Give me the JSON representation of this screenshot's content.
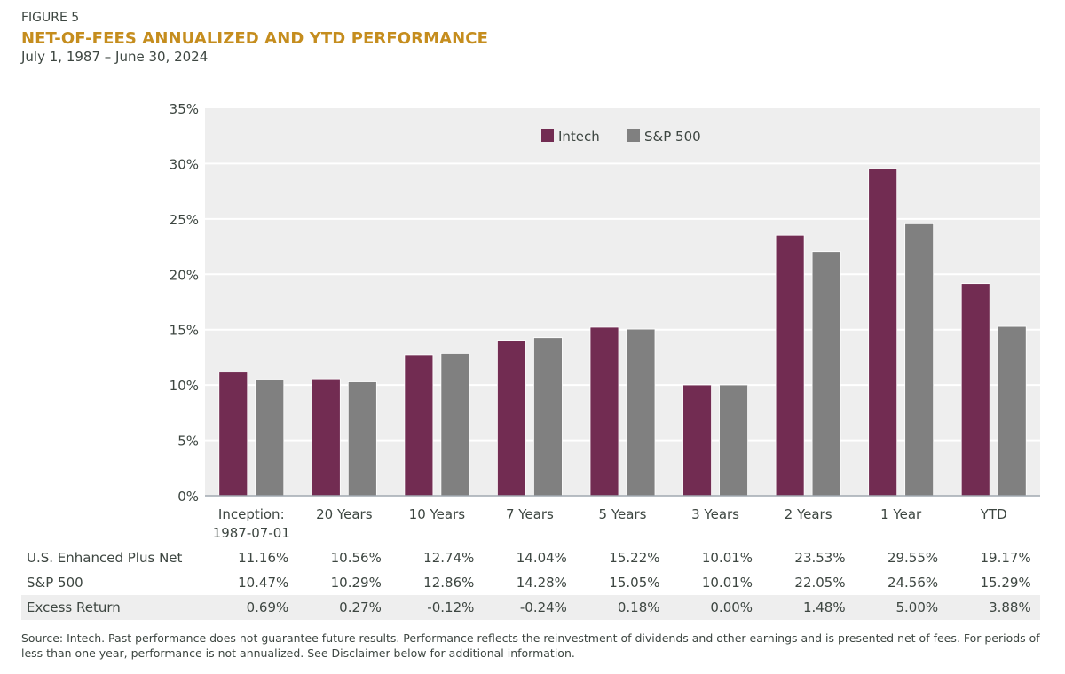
{
  "header": {
    "figure_label": "FIGURE 5",
    "title": "NET-OF-FEES ANNUALIZED AND YTD PERFORMANCE",
    "subtitle": "July 1, 1987 – June 30, 2024"
  },
  "colors": {
    "title": "#c58d1e",
    "intech": "#722c52",
    "sp500": "#808080",
    "plot_bg": "#eeeeee",
    "gridline": "#ffffff",
    "axis": "#a0a8b0"
  },
  "chart_data": {
    "type": "bar",
    "title": "NET-OF-FEES ANNUALIZED AND YTD PERFORMANCE",
    "subtitle": "July 1, 1987 – June 30, 2024",
    "xlabel": "",
    "ylabel": "",
    "categories": [
      [
        "Inception:",
        "1987-07-01"
      ],
      [
        "20 Years"
      ],
      [
        "10 Years"
      ],
      [
        "7 Years"
      ],
      [
        "5 Years"
      ],
      [
        "3 Years"
      ],
      [
        "2 Years"
      ],
      [
        "1 Year"
      ],
      [
        "YTD"
      ]
    ],
    "series": [
      {
        "name": "Intech",
        "color": "#722c52",
        "values": [
          11.16,
          10.56,
          12.74,
          14.04,
          15.22,
          10.01,
          23.53,
          29.55,
          19.17
        ]
      },
      {
        "name": "S&P 500",
        "color": "#808080",
        "values": [
          10.47,
          10.29,
          12.86,
          14.28,
          15.05,
          10.01,
          22.05,
          24.56,
          15.29
        ]
      }
    ],
    "ylim": [
      0,
      35
    ],
    "yticks": [
      0,
      5,
      10,
      15,
      20,
      25,
      30,
      35
    ],
    "ytick_labels": [
      "0%",
      "5%",
      "10%",
      "15%",
      "20%",
      "25%",
      "30%",
      "35%"
    ],
    "grid": true,
    "legend_position": "top-center"
  },
  "table": {
    "rows": [
      {
        "label": "U.S. Enhanced Plus Net",
        "values": [
          "11.16%",
          "10.56%",
          "12.74%",
          "14.04%",
          "15.22%",
          "10.01%",
          "23.53%",
          "29.55%",
          "19.17%"
        ],
        "shaded": false
      },
      {
        "label": "S&P 500",
        "values": [
          "10.47%",
          "10.29%",
          "12.86%",
          "14.28%",
          "15.05%",
          "10.01%",
          "22.05%",
          "24.56%",
          "15.29%"
        ],
        "shaded": false
      },
      {
        "label": "Excess Return",
        "values": [
          "0.69%",
          "0.27%",
          "-0.12%",
          "-0.24%",
          "0.18%",
          "0.00%",
          "1.48%",
          "5.00%",
          "3.88%"
        ],
        "shaded": true
      }
    ]
  },
  "footnote": "Source: Intech. Past performance does not guarantee future results. Performance reflects the reinvestment of dividends and other earnings and is presented net of fees. For periods of less than one year, performance is not annualized. See Disclaimer below for additional information."
}
